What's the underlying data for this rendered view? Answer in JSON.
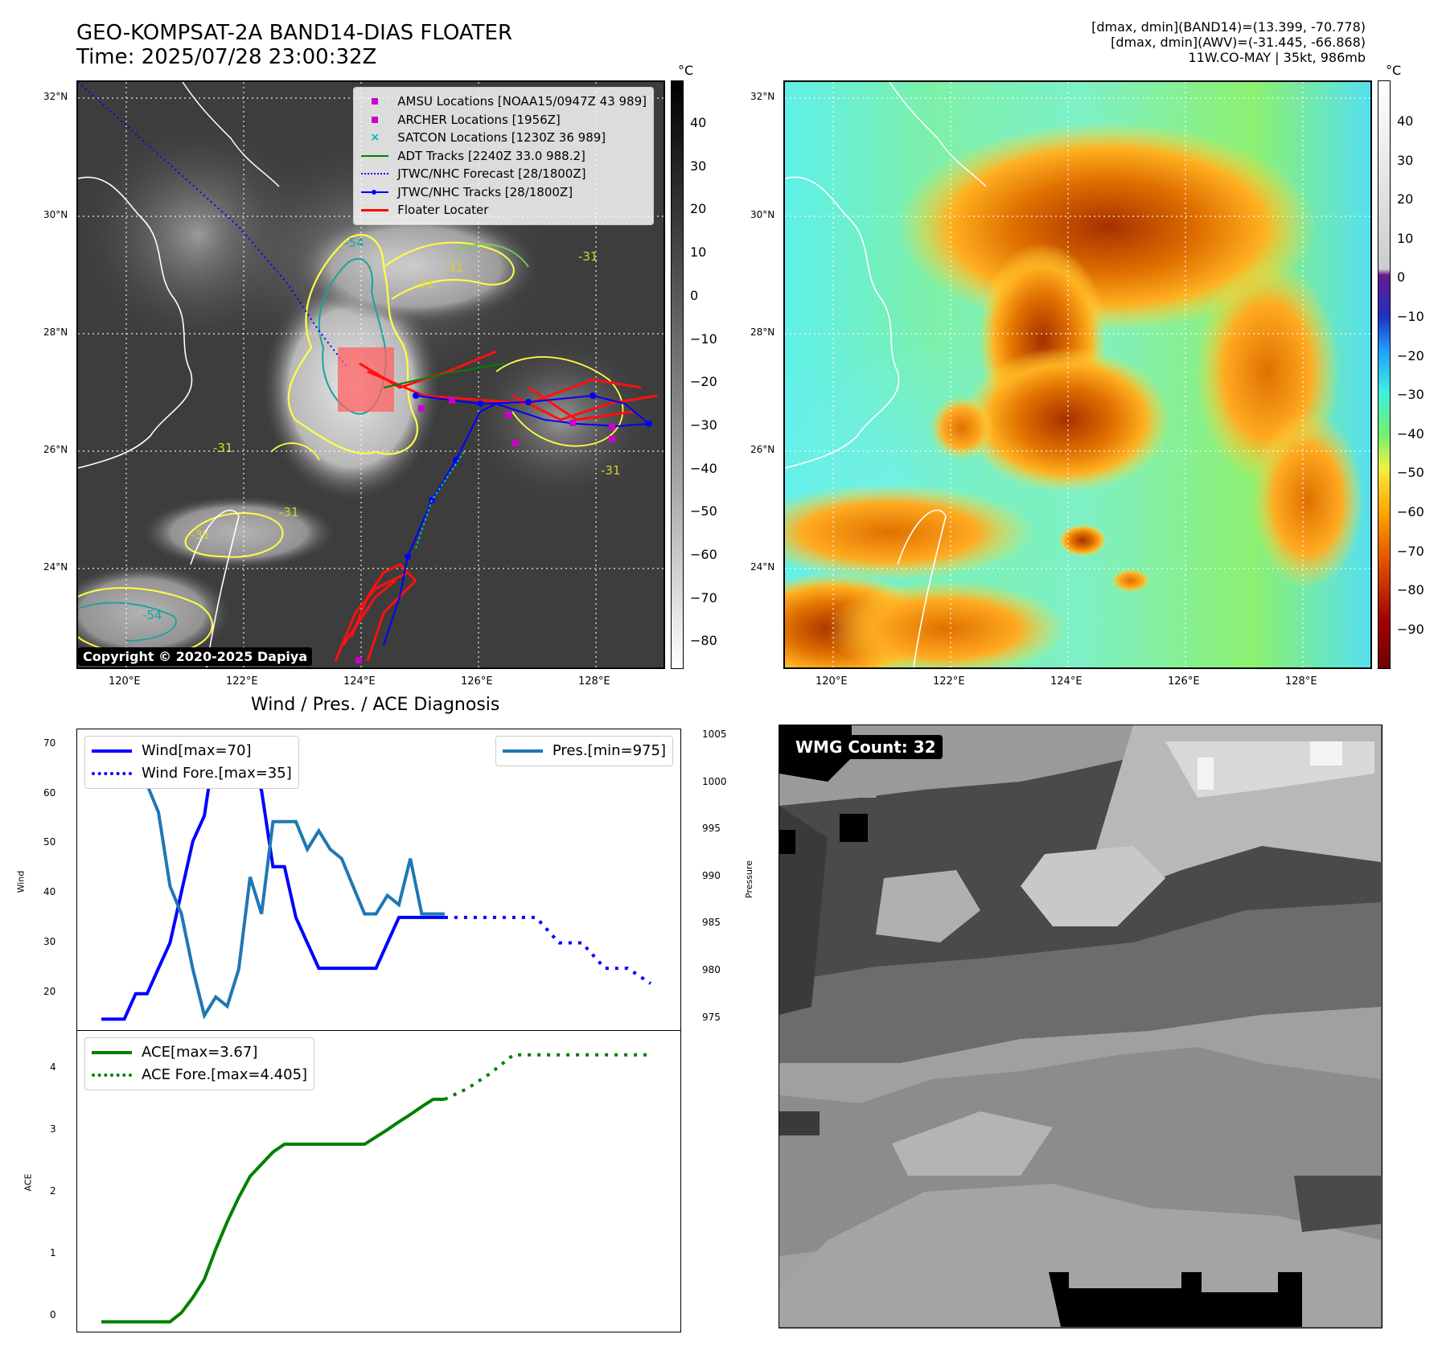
{
  "header": {
    "title_line1": "GEO-KOMPSAT-2A BAND14-DIAS FLOATER",
    "title_line2": "Time: 2025/07/28 23:00:32Z",
    "info_line1": "[dmax, dmin](BAND14)=(13.399, -70.778)",
    "info_line2": "[dmax, dmin](AWV)=(-31.445, -66.868)",
    "info_line3": "11W.CO-MAY | 35kt, 986mb"
  },
  "ir_panel": {
    "lat_labels": [
      "32°N",
      "30°N",
      "28°N",
      "26°N",
      "24°N"
    ],
    "lon_labels": [
      "120°E",
      "122°E",
      "124°E",
      "126°E",
      "128°E"
    ],
    "colorbar_unit": "°C",
    "colorbar_ticks": [
      "40",
      "30",
      "20",
      "10",
      "0",
      "−10",
      "−20",
      "−30",
      "−40",
      "−50",
      "−60",
      "−70",
      "−80"
    ],
    "contour_labels": [
      "-54",
      "-31",
      "-31",
      "-31",
      "-31",
      "-31",
      "-54",
      "-31",
      "-31"
    ],
    "legend": [
      {
        "label": "AMSU Locations [NOAA15/0947Z 43 989]",
        "symbol": "square",
        "color": "#cc00cc"
      },
      {
        "label": "ARCHER Locations [1956Z]",
        "symbol": "square",
        "color": "#cc00cc"
      },
      {
        "label": "SATCON Locations [1230Z 36 989]",
        "symbol": "x",
        "color": "#00bbbb"
      },
      {
        "label": "ADT Tracks [2240Z 33.0 988.2]",
        "symbol": "line",
        "color": "#008000"
      },
      {
        "label": "JTWC/NHC Forecast [28/1800Z]",
        "symbol": "dotted",
        "color": "#0000ff"
      },
      {
        "label": "JTWC/NHC Tracks [28/1800Z]",
        "symbol": "line-dot",
        "color": "#0000ff"
      },
      {
        "label": "Floater Locater",
        "symbol": "line",
        "color": "#ff0000"
      }
    ],
    "copyright": "Copyright © 2020-2025 Dapiya"
  },
  "awv_panel": {
    "lat_labels": [
      "32°N",
      "30°N",
      "28°N",
      "26°N",
      "24°N"
    ],
    "lon_labels": [
      "120°E",
      "122°E",
      "124°E",
      "126°E",
      "128°E"
    ],
    "colorbar_unit": "°C",
    "colorbar_ticks": [
      "40",
      "30",
      "20",
      "10",
      "0",
      "−10",
      "−20",
      "−30",
      "−40",
      "−50",
      "−60",
      "−70",
      "−80",
      "−90"
    ]
  },
  "diagnosis": {
    "title": "Wind / Pres. / ACE Diagnosis",
    "wind_ylabel": "Wind",
    "pres_ylabel": "Pressure",
    "ace_ylabel": "ACE",
    "wind_ticks": [
      "70",
      "60",
      "50",
      "40",
      "30",
      "20"
    ],
    "pres_ticks": [
      "1005",
      "1000",
      "995",
      "990",
      "985",
      "980",
      "975"
    ],
    "ace_ticks": [
      "4",
      "3",
      "2",
      "1",
      "0"
    ],
    "legend_wind": "Wind[max=70]",
    "legend_wind_fore": "Wind Fore.[max=35]",
    "legend_pres": "Pres.[min=975]",
    "legend_ace": "ACE[max=3.67]",
    "legend_ace_fore": "ACE Fore.[max=4.405]"
  },
  "wmg_panel": {
    "label": "WMG Count: 32"
  },
  "chart_data": [
    {
      "type": "line",
      "title": "Wind / Pres. / ACE Diagnosis",
      "ylabel": "Wind",
      "ylim": [
        13,
        72
      ],
      "series": [
        {
          "name": "Wind[max=70]",
          "color": "#0000ff",
          "style": "solid",
          "x": [
            0,
            1,
            2,
            3,
            4,
            5,
            6,
            7,
            8,
            9,
            10,
            11,
            12,
            13,
            14,
            15,
            16,
            17,
            18,
            19,
            20,
            21,
            22,
            23,
            24,
            25,
            26,
            27,
            28,
            29,
            30
          ],
          "y": [
            15,
            15,
            15,
            20,
            20,
            25,
            30,
            40,
            50,
            55,
            70,
            70,
            65,
            65,
            60,
            45,
            45,
            35,
            30,
            25,
            25,
            25,
            25,
            25,
            25,
            30,
            35,
            35,
            35,
            35,
            35
          ]
        },
        {
          "name": "Wind Fore.[max=35]",
          "color": "#0000ff",
          "style": "dotted",
          "x": [
            30,
            33,
            36,
            38,
            40,
            42,
            44,
            46,
            48
          ],
          "y": [
            35,
            35,
            35,
            35,
            30,
            30,
            25,
            25,
            22
          ]
        }
      ]
    },
    {
      "type": "line",
      "ylabel": "Pressure",
      "ylim": [
        973.5,
        1006
      ],
      "series": [
        {
          "name": "Pres.[min=975]",
          "color": "#1f77b4",
          "style": "solid",
          "x": [
            0,
            1,
            2,
            3,
            4,
            5,
            6,
            7,
            8,
            9,
            10,
            11,
            12,
            13,
            14,
            15,
            16,
            17,
            18,
            19,
            20,
            21,
            22,
            23,
            24,
            25,
            26,
            27,
            28,
            29,
            30
          ],
          "y": [
            1005,
            1005,
            1005,
            1001,
            1000,
            997,
            989,
            986,
            980,
            975,
            977,
            976,
            980,
            990,
            986,
            996,
            996,
            996,
            993,
            995,
            993,
            992,
            989,
            986,
            986,
            988,
            987,
            992,
            986,
            986,
            986
          ]
        }
      ]
    },
    {
      "type": "line",
      "ylabel": "ACE",
      "ylim": [
        -0.15,
        4.8
      ],
      "series": [
        {
          "name": "ACE[max=3.67]",
          "color": "#008000",
          "style": "solid",
          "x": [
            0,
            1,
            2,
            3,
            4,
            5,
            6,
            7,
            8,
            9,
            10,
            11,
            12,
            13,
            14,
            15,
            16,
            17,
            18,
            19,
            20,
            21,
            22,
            23,
            24,
            25,
            26,
            27,
            28,
            29,
            30
          ],
          "y": [
            0,
            0,
            0,
            0,
            0,
            0,
            0,
            0.15,
            0.4,
            0.7,
            1.2,
            1.65,
            2.05,
            2.4,
            2.6,
            2.8,
            2.93,
            2.93,
            2.93,
            2.93,
            2.93,
            2.93,
            2.93,
            2.93,
            3.05,
            3.17,
            3.3,
            3.42,
            3.55,
            3.67,
            3.67
          ]
        },
        {
          "name": "ACE Fore.[max=4.405]",
          "color": "#008000",
          "style": "dotted",
          "x": [
            30,
            32,
            34,
            36,
            38,
            40,
            42,
            44,
            46,
            48
          ],
          "y": [
            3.67,
            3.85,
            4.1,
            4.405,
            4.405,
            4.405,
            4.405,
            4.405,
            4.405,
            4.405
          ]
        }
      ]
    }
  ]
}
